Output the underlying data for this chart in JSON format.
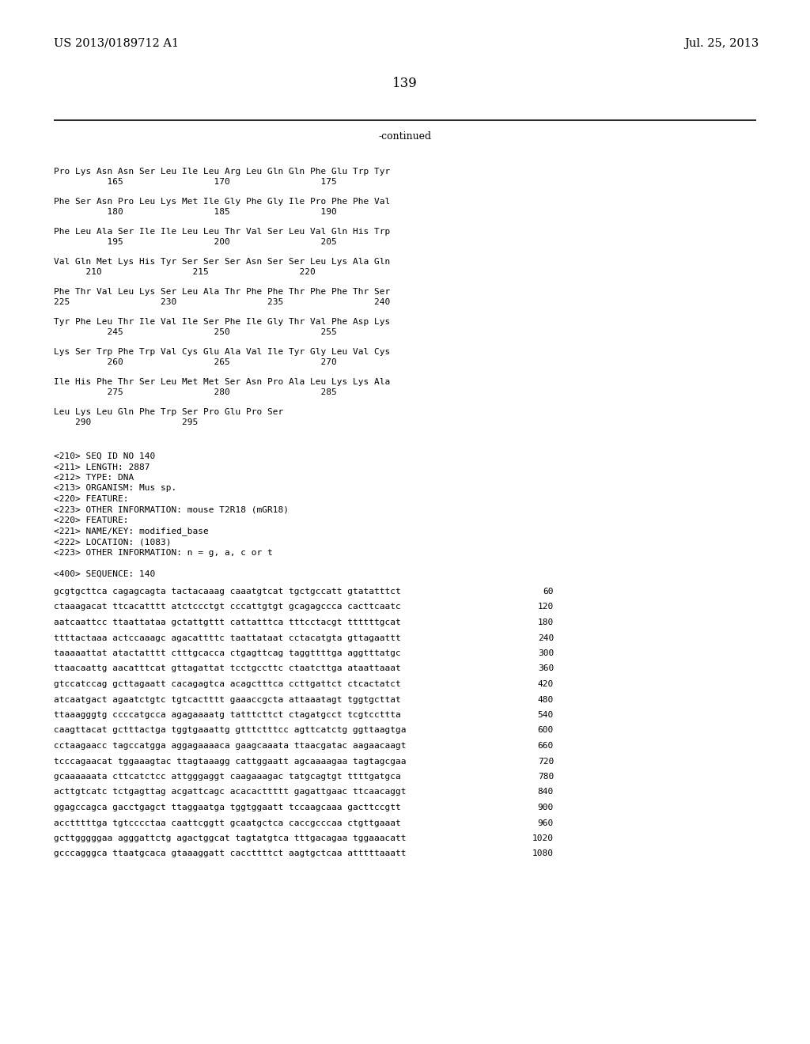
{
  "patent_number": "US 2013/0189712 A1",
  "date": "Jul. 25, 2013",
  "page_number": "139",
  "continued_label": "-continued",
  "background_color": "#ffffff",
  "text_color": "#000000",
  "protein_lines": [
    [
      "Pro Lys Asn Asn Ser Leu Ile Leu Arg Leu Gln Gln Phe Glu Trp Tyr",
      "          165                 170                 175"
    ],
    [
      "Phe Ser Asn Pro Leu Lys Met Ile Gly Phe Gly Ile Pro Phe Phe Val",
      "          180                 185                 190"
    ],
    [
      "Phe Leu Ala Ser Ile Ile Leu Leu Thr Val Ser Leu Val Gln His Trp",
      "          195                 200                 205"
    ],
    [
      "Val Gln Met Lys His Tyr Ser Ser Ser Asn Ser Ser Leu Lys Ala Gln",
      "      210                 215                 220"
    ],
    [
      "Phe Thr Val Leu Lys Ser Leu Ala Thr Phe Phe Thr Phe Phe Thr Ser",
      "225                 230                 235                 240"
    ],
    [
      "Tyr Phe Leu Thr Ile Val Ile Ser Phe Ile Gly Thr Val Phe Asp Lys",
      "          245                 250                 255"
    ],
    [
      "Lys Ser Trp Phe Trp Val Cys Glu Ala Val Ile Tyr Gly Leu Val Cys",
      "          260                 265                 270"
    ],
    [
      "Ile His Phe Thr Ser Leu Met Met Ser Asn Pro Ala Leu Lys Lys Ala",
      "          275                 280                 285"
    ],
    [
      "Leu Lys Leu Gln Phe Trp Ser Pro Glu Pro Ser",
      "    290                 295"
    ]
  ],
  "metadata_lines": [
    "<210> SEQ ID NO 140",
    "<211> LENGTH: 2887",
    "<212> TYPE: DNA",
    "<213> ORGANISM: Mus sp.",
    "<220> FEATURE:",
    "<223> OTHER INFORMATION: mouse T2R18 (mGR18)",
    "<220> FEATURE:",
    "<221> NAME/KEY: modified_base",
    "<222> LOCATION: (1083)",
    "<223> OTHER INFORMATION: n = g, a, c or t"
  ],
  "sequence_header": "<400> SEQUENCE: 140",
  "sequence_lines": [
    [
      "gcgtgcttca cagagcagta tactacaaag caaatgtcat tgctgccatt gtatatttct",
      "60"
    ],
    [
      "ctaaagacat ttcacatttt atctccctgt cccattgtgt gcagagccca cacttcaatc",
      "120"
    ],
    [
      "aatcaattcc ttaattataa gctattgttt cattatttca tttcctacgt ttttttgcat",
      "180"
    ],
    [
      "ttttactaaa actccaaagc agacattttc taattataat cctacatgta gttagaattt",
      "240"
    ],
    [
      "taaaaattat atactatttt ctttgcacca ctgagttcag taggttttga aggtttatgc",
      "300"
    ],
    [
      "ttaacaattg aacatttcat gttagattat tcctgccttc ctaatcttga ataattaaat",
      "360"
    ],
    [
      "gtccatccag gcttagaatt cacagagtca acagctttca ccttgattct ctcactatct",
      "420"
    ],
    [
      "atcaatgact agaatctgtc tgtcactttt gaaaccgcta attaaatagt tggtgcttat",
      "480"
    ],
    [
      "ttaaagggtg ccccatgcca agagaaaatg tatttcttct ctagatgcct tcgtccttta",
      "540"
    ],
    [
      "caagttacat gctttactga tggtgaaattg gtttctttcc agttcatctg ggttaagtga",
      "600"
    ],
    [
      "cctaagaacc tagccatgga aggagaaaaca gaagcaaata ttaacgatac aagaacaagt",
      "660"
    ],
    [
      "tcccagaacat tggaaagtac ttagtaaagg cattggaatt agcaaaagaa tagtagcgaa",
      "720"
    ],
    [
      "gcaaaaaata cttcatctcc attgggaggt caagaaagac tatgcagtgt ttttgatgca",
      "780"
    ],
    [
      "acttgtcatc tctgagttag acgattcagc acacacttttt gagattgaac ttcaacaggt",
      "840"
    ],
    [
      "ggagccagca gacctgagct ttaggaatga tggtggaatt tccaagcaaa gacttccgtt",
      "900"
    ],
    [
      "acctttttga tgtcccctaa caattcggtt gcaatgctca caccgcccaa ctgttgaaat",
      "960"
    ],
    [
      "gcttgggggaa agggattctg agactggcat tagtatgtca tttgacagaa tggaaacatt",
      "1020"
    ],
    [
      "gcccagggca ttaatgcaca gtaaaggatt caccttttct aagtgctcaa atttttaaatt",
      "1080"
    ]
  ]
}
